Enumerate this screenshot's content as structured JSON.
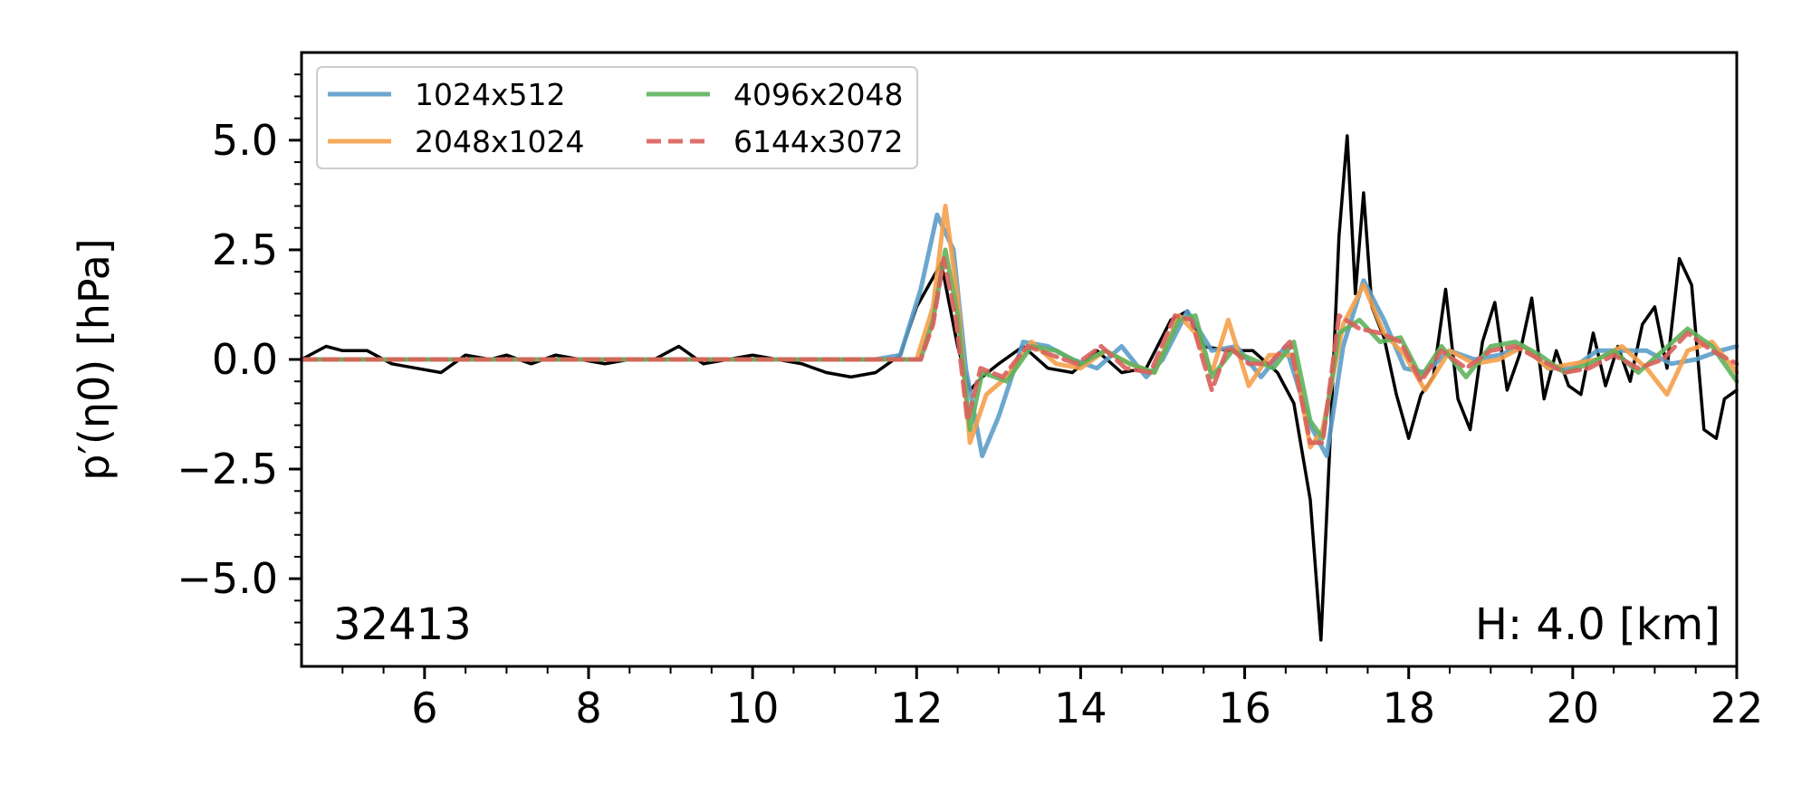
{
  "chart_data": {
    "type": "line",
    "xlabel": "",
    "ylabel": "p′(η0) [hPa]",
    "xlim": [
      4.5,
      22
    ],
    "ylim": [
      -7,
      7
    ],
    "xticks": [
      6,
      8,
      10,
      12,
      14,
      16,
      18,
      20,
      22
    ],
    "xtick_labels": [
      "6",
      "8",
      "10",
      "12",
      "14",
      "16",
      "18",
      "20",
      "22"
    ],
    "yticks": [
      5.0,
      2.5,
      0.0,
      -2.5,
      -5.0
    ],
    "ytick_labels": [
      "5.0",
      "2.5",
      "0.0",
      "−2.5",
      "−5.0"
    ],
    "grid": false,
    "legend_position": "top-left",
    "annotations": {
      "station": "32413",
      "depth": "H: 4.0 [km]"
    },
    "series": [
      {
        "name": "",
        "color": "#000000",
        "style": "solid",
        "x": [
          4.5,
          4.8,
          5.0,
          5.3,
          5.6,
          5.9,
          6.2,
          6.5,
          6.8,
          7.0,
          7.3,
          7.6,
          7.9,
          8.2,
          8.5,
          8.8,
          9.1,
          9.4,
          9.7,
          10.0,
          10.3,
          10.6,
          10.9,
          11.2,
          11.5,
          11.8,
          12.0,
          12.3,
          12.5,
          12.65,
          12.8,
          13.0,
          13.3,
          13.6,
          13.9,
          14.2,
          14.5,
          14.8,
          15.1,
          15.3,
          15.5,
          15.8,
          16.1,
          16.4,
          16.6,
          16.8,
          16.93,
          17.05,
          17.15,
          17.25,
          17.35,
          17.45,
          17.55,
          17.7,
          17.85,
          18.0,
          18.15,
          18.3,
          18.45,
          18.6,
          18.75,
          18.9,
          19.05,
          19.2,
          19.35,
          19.5,
          19.65,
          19.8,
          19.95,
          20.1,
          20.25,
          20.4,
          20.55,
          20.7,
          20.85,
          21.0,
          21.15,
          21.3,
          21.45,
          21.6,
          21.75,
          21.85,
          22.0
        ],
        "y": [
          0.0,
          0.3,
          0.2,
          0.2,
          -0.1,
          -0.2,
          -0.3,
          0.1,
          0.0,
          0.1,
          -0.1,
          0.1,
          0.0,
          -0.1,
          0.0,
          0.0,
          0.3,
          -0.1,
          0.0,
          0.1,
          0.0,
          -0.1,
          -0.3,
          -0.4,
          -0.3,
          0.1,
          1.2,
          2.2,
          0.3,
          -0.7,
          -0.4,
          -0.1,
          0.3,
          -0.2,
          -0.3,
          0.2,
          -0.3,
          -0.2,
          0.9,
          1.1,
          0.3,
          0.2,
          0.2,
          -0.3,
          -1.0,
          -3.2,
          -6.4,
          -1.5,
          2.8,
          5.1,
          1.5,
          3.8,
          1.2,
          0.5,
          -0.8,
          -1.8,
          -0.8,
          -0.4,
          1.6,
          -0.9,
          -1.6,
          0.4,
          1.3,
          -0.7,
          0.1,
          1.4,
          -0.9,
          0.2,
          -0.6,
          -0.8,
          0.6,
          -0.6,
          0.3,
          -0.5,
          0.8,
          1.2,
          -0.2,
          2.3,
          1.7,
          -1.6,
          -1.8,
          -0.9,
          -0.7
        ]
      },
      {
        "name": "1024x512",
        "color": "#5c9dc9",
        "style": "solid",
        "x": [
          4.5,
          11.5,
          11.8,
          12.05,
          12.25,
          12.45,
          12.6,
          12.8,
          13.0,
          13.3,
          13.6,
          13.9,
          14.2,
          14.5,
          14.8,
          15.0,
          15.3,
          15.6,
          15.9,
          16.2,
          16.5,
          16.8,
          17.0,
          17.2,
          17.45,
          17.7,
          17.95,
          18.2,
          18.5,
          18.8,
          19.1,
          19.4,
          19.7,
          20.0,
          20.3,
          20.6,
          20.9,
          21.2,
          21.5,
          21.8,
          22.0
        ],
        "y": [
          0.0,
          0.0,
          0.1,
          1.6,
          3.3,
          2.5,
          -0.2,
          -2.2,
          -1.3,
          0.4,
          0.3,
          0.0,
          -0.2,
          0.3,
          -0.4,
          0.0,
          1.1,
          0.2,
          0.3,
          -0.4,
          0.3,
          -1.5,
          -2.2,
          0.3,
          1.8,
          0.9,
          -0.2,
          -0.3,
          0.2,
          0.0,
          0.1,
          0.3,
          -0.2,
          -0.2,
          0.2,
          0.2,
          0.2,
          -0.1,
          0.0,
          0.2,
          0.3
        ]
      },
      {
        "name": "2048x1024",
        "color": "#f5a04a",
        "style": "solid",
        "x": [
          4.5,
          12.0,
          12.2,
          12.35,
          12.5,
          12.65,
          12.85,
          13.1,
          13.4,
          13.7,
          14.0,
          14.3,
          14.6,
          14.9,
          15.2,
          15.4,
          15.6,
          15.8,
          16.05,
          16.3,
          16.6,
          16.8,
          16.95,
          17.2,
          17.45,
          17.7,
          17.95,
          18.2,
          18.5,
          18.8,
          19.1,
          19.4,
          19.7,
          20.0,
          20.3,
          20.6,
          20.9,
          21.15,
          21.4,
          21.7,
          22.0
        ],
        "y": [
          0.0,
          0.0,
          1.2,
          3.5,
          1.4,
          -1.9,
          -0.8,
          -0.4,
          0.4,
          -0.1,
          -0.2,
          0.2,
          -0.1,
          -0.3,
          1.0,
          0.6,
          -0.3,
          0.9,
          -0.6,
          0.1,
          0.1,
          -2.0,
          -1.6,
          0.8,
          1.7,
          0.6,
          0.1,
          -0.7,
          0.2,
          -0.1,
          0.0,
          0.3,
          -0.2,
          -0.1,
          0.0,
          0.3,
          -0.2,
          -0.8,
          0.2,
          0.4,
          -0.3
        ]
      },
      {
        "name": "4096x2048",
        "color": "#5fb35c",
        "style": "solid",
        "x": [
          4.5,
          12.05,
          12.2,
          12.35,
          12.5,
          12.65,
          12.8,
          13.1,
          13.4,
          13.7,
          14.0,
          14.3,
          14.6,
          14.9,
          15.2,
          15.4,
          15.6,
          15.85,
          16.1,
          16.35,
          16.6,
          16.8,
          16.95,
          17.15,
          17.4,
          17.65,
          17.9,
          18.15,
          18.4,
          18.7,
          19.0,
          19.3,
          19.6,
          19.9,
          20.2,
          20.5,
          20.8,
          21.1,
          21.4,
          21.7,
          22.0
        ],
        "y": [
          0.0,
          0.0,
          0.9,
          2.5,
          1.0,
          -1.6,
          -0.3,
          -0.5,
          0.3,
          0.2,
          -0.1,
          0.2,
          -0.1,
          -0.3,
          0.9,
          1.0,
          -0.4,
          0.2,
          0.0,
          -0.2,
          0.4,
          -1.4,
          -1.8,
          0.6,
          0.9,
          0.4,
          0.5,
          -0.4,
          0.3,
          -0.4,
          0.3,
          0.4,
          0.1,
          -0.3,
          -0.1,
          0.2,
          -0.3,
          0.2,
          0.7,
          0.3,
          -0.5
        ]
      },
      {
        "name": "6144x3072",
        "color": "#d9615b",
        "style": "dashed",
        "x": [
          4.5,
          12.05,
          12.2,
          12.33,
          12.48,
          12.62,
          12.78,
          13.05,
          13.35,
          13.65,
          13.95,
          14.25,
          14.55,
          14.85,
          15.15,
          15.35,
          15.6,
          15.8,
          16.05,
          16.3,
          16.55,
          16.8,
          16.95,
          17.15,
          17.4,
          17.65,
          17.9,
          18.15,
          18.4,
          18.7,
          19.0,
          19.3,
          19.6,
          19.9,
          20.2,
          20.5,
          20.8,
          21.1,
          21.4,
          21.7,
          22.0
        ],
        "y": [
          0.0,
          0.0,
          0.8,
          2.3,
          0.9,
          -1.4,
          -0.2,
          -0.4,
          0.3,
          0.1,
          -0.1,
          0.3,
          -0.2,
          -0.3,
          1.0,
          0.9,
          -0.7,
          0.3,
          -0.1,
          -0.1,
          0.4,
          -1.9,
          -1.9,
          1.0,
          0.7,
          0.6,
          0.4,
          -0.5,
          0.2,
          -0.2,
          0.2,
          0.3,
          0.0,
          -0.3,
          -0.2,
          0.1,
          -0.2,
          0.0,
          0.6,
          0.2,
          -0.1
        ]
      }
    ]
  }
}
